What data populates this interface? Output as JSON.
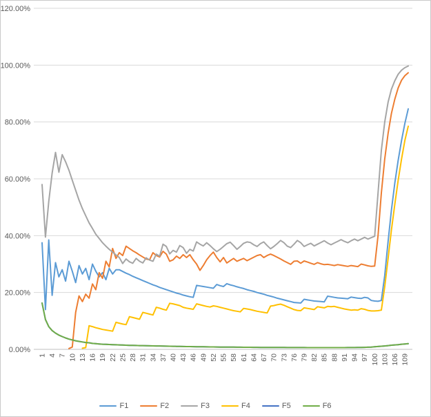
{
  "chart_data": {
    "type": "line",
    "title": "",
    "xlabel": "",
    "ylabel": "",
    "n_points": 110,
    "ylim": [
      0,
      120
    ],
    "grid": true,
    "legend_position": "bottom",
    "y_tick_labels": [
      "0.00%",
      "20.00%",
      "40.00%",
      "60.00%",
      "80.00%",
      "100.00%",
      "120.00%"
    ],
    "x_tick_labels": [
      "1",
      "4",
      "7",
      "10",
      "13",
      "16",
      "19",
      "22",
      "25",
      "28",
      "31",
      "34",
      "37",
      "40",
      "43",
      "46",
      "49",
      "52",
      "55",
      "58",
      "61",
      "64",
      "67",
      "70",
      "73",
      "76",
      "79",
      "82",
      "85",
      "88",
      "91",
      "94",
      "97",
      "100",
      "103",
      "106",
      "109"
    ],
    "x_tick_step": 3,
    "style": {
      "background": "#ffffff",
      "border_color": "#c9c9c9",
      "gridline_color": "#d9d9d9",
      "axis_line_color": "#bfbfbf",
      "tick_text_color": "#595959",
      "x_label_rotation": -90
    },
    "series": [
      {
        "name": "F1",
        "color": "#5B9BD5",
        "values": [
          37.5,
          14,
          38.5,
          19,
          30.5,
          25.5,
          28,
          24,
          31,
          27.5,
          23.5,
          29.5,
          26.5,
          28.5,
          24.5,
          30,
          27.5,
          25.5,
          27,
          24.5,
          28.5,
          26.5,
          28,
          28,
          27.4,
          26.8,
          26.3,
          25.7,
          25.2,
          24.7,
          24.2,
          23.7,
          23.2,
          22.7,
          22.3,
          21.8,
          21.4,
          21,
          20.6,
          20.2,
          19.8,
          19.5,
          19.1,
          18.8,
          18.5,
          18.3,
          22.5,
          22.3,
          22.1,
          21.9,
          21.7,
          21.5,
          22.8,
          22.4,
          22.1,
          23.1,
          22.7,
          22.4,
          22,
          21.7,
          21.4,
          21,
          20.7,
          20.4,
          20,
          19.7,
          19.4,
          19,
          18.7,
          18.4,
          18,
          17.7,
          17.4,
          17.1,
          16.8,
          16.5,
          16.4,
          16.3,
          17.6,
          17.4,
          17.2,
          17,
          16.9,
          16.8,
          16.7,
          18.7,
          18.5,
          18.3,
          18.1,
          18,
          17.9,
          17.8,
          18.4,
          18.2,
          18,
          17.9,
          18.3,
          18.1,
          17.2,
          17,
          16.9,
          17.2,
          26,
          38,
          49,
          58.5,
          66.5,
          73.5,
          79.5,
          84.6
        ]
      },
      {
        "name": "F2",
        "color": "#ED7D31",
        "values": [
          null,
          null,
          null,
          null,
          null,
          null,
          null,
          null,
          0.3,
          0.8,
          13,
          18.8,
          16.8,
          19.4,
          18,
          23,
          21,
          27,
          25,
          31,
          29,
          35.5,
          32,
          34,
          33,
          36.3,
          35.5,
          34.7,
          34,
          33.2,
          32.5,
          31.8,
          31.5,
          34,
          33,
          32.5,
          34.5,
          33.5,
          31,
          31.5,
          32.8,
          32,
          33.3,
          32.3,
          33.3,
          31.5,
          30,
          27.8,
          29.5,
          31.5,
          33,
          34.2,
          32.3,
          30.8,
          32.3,
          30.4,
          31.2,
          32,
          31,
          31.5,
          32,
          31.2,
          31.8,
          32.4,
          33,
          33.3,
          32.3,
          33,
          33.5,
          33,
          32.4,
          31.8,
          31.1,
          30.5,
          29.9,
          31,
          31.1,
          30.3,
          31.1,
          30.7,
          30.3,
          29.9,
          30.5,
          30.1,
          29.8,
          29.9,
          29.7,
          29.5,
          29.8,
          29.6,
          29.4,
          29.2,
          29.5,
          29.3,
          29.1,
          30,
          29.7,
          29.4,
          29.2,
          29.3,
          40,
          55,
          67,
          76,
          83,
          88,
          92,
          94.7,
          96.3,
          97.3
        ]
      },
      {
        "name": "F3",
        "color": "#A5A5A5",
        "values": [
          58,
          39.5,
          52,
          62,
          69.3,
          62.3,
          68.5,
          66,
          63,
          59.5,
          56,
          52.5,
          49.5,
          47,
          44.5,
          42.5,
          40.5,
          39,
          37.5,
          36.3,
          35.2,
          34.2,
          33.2,
          32.3,
          30.2,
          31.8,
          30.8,
          30.3,
          32,
          31,
          30.4,
          32.2,
          31.4,
          31,
          33.5,
          32.8,
          37,
          36.2,
          33.6,
          34.8,
          34.2,
          36.5,
          35.8,
          33.8,
          35.2,
          34.6,
          37.8,
          37,
          36.4,
          37.5,
          36.5,
          35.4,
          34.4,
          35.2,
          36.2,
          37.2,
          37.7,
          36.5,
          35.2,
          36.2,
          37.3,
          37.8,
          37.6,
          36.8,
          36.2,
          37.2,
          37.8,
          36.5,
          35.4,
          36.2,
          37.2,
          38.3,
          37.5,
          36.3,
          35.8,
          37,
          38.3,
          37.5,
          36.2,
          36.8,
          37.3,
          36.4,
          37,
          37.6,
          38.2,
          37.4,
          36.8,
          37.4,
          38,
          38.6,
          38,
          37.5,
          38.2,
          38.8,
          38.2,
          38.8,
          39.4,
          38.8,
          39.3,
          39.8,
          55,
          70,
          80,
          87,
          91.5,
          94.5,
          96.8,
          98.2,
          99.1,
          99.7
        ]
      },
      {
        "name": "F4",
        "color": "#FFC000",
        "values": [
          null,
          null,
          null,
          null,
          null,
          null,
          null,
          null,
          null,
          null,
          null,
          null,
          0.4,
          0.6,
          8.3,
          8,
          7.6,
          7.3,
          7,
          6.8,
          6.6,
          6.4,
          9.5,
          9.2,
          8.9,
          8.7,
          11.5,
          11.2,
          10.9,
          10.6,
          13,
          12.7,
          12.4,
          12.1,
          14.8,
          14.5,
          14.1,
          13.8,
          16.2,
          16,
          15.7,
          15.4,
          14.8,
          14.5,
          14.3,
          14.1,
          16,
          15.7,
          15.4,
          15.1,
          14.9,
          15.3,
          15.1,
          14.8,
          14.5,
          14.2,
          13.9,
          13.6,
          13.4,
          13.2,
          14.4,
          14.2,
          14,
          13.7,
          13.4,
          13.2,
          13,
          12.8,
          15.2,
          15.4,
          15.7,
          15.9,
          15.5,
          15,
          14.5,
          14,
          13.7,
          13.6,
          14.6,
          14.4,
          14.2,
          14,
          15,
          14.8,
          14.6,
          15.1,
          15,
          15.1,
          14.8,
          14.5,
          14.2,
          14,
          13.8,
          13.9,
          13.8,
          14.3,
          14.1,
          13.7,
          13.5,
          13.5,
          13.6,
          13.8,
          22,
          32,
          42,
          51,
          59.5,
          67,
          73.5,
          78.5
        ]
      },
      {
        "name": "F5",
        "color": "#4472C4",
        "values": [
          16.3,
          10.5,
          8,
          6.6,
          5.7,
          5,
          4.5,
          4,
          3.6,
          3.3,
          3,
          2.8,
          2.6,
          2.4,
          2.3,
          2.1,
          2,
          1.9,
          1.8,
          1.75,
          1.7,
          1.65,
          1.6,
          1.55,
          1.5,
          1.45,
          1.4,
          1.38,
          1.35,
          1.32,
          1.3,
          1.28,
          1.25,
          1.22,
          1.2,
          1.18,
          1.15,
          1.12,
          1.1,
          1.08,
          1.05,
          1.03,
          1,
          0.98,
          0.96,
          0.94,
          0.92,
          0.9,
          0.89,
          0.87,
          0.86,
          0.84,
          0.83,
          0.81,
          0.8,
          0.79,
          0.78,
          0.77,
          0.76,
          0.75,
          0.74,
          0.73,
          0.72,
          0.71,
          0.7,
          0.69,
          0.68,
          0.68,
          0.67,
          0.66,
          0.66,
          0.65,
          0.65,
          0.64,
          0.64,
          0.63,
          0.63,
          0.62,
          0.62,
          0.61,
          0.61,
          0.6,
          0.6,
          0.6,
          0.6,
          0.6,
          0.6,
          0.6,
          0.6,
          0.6,
          0.61,
          0.62,
          0.63,
          0.64,
          0.66,
          0.68,
          0.7,
          0.75,
          0.8,
          0.9,
          1,
          1.1,
          1.2,
          1.3,
          1.45,
          1.55,
          1.65,
          1.8,
          1.9,
          2
        ]
      },
      {
        "name": "F6",
        "color": "#70AD47",
        "values": [
          16.3,
          10.5,
          8,
          6.6,
          5.7,
          5,
          4.5,
          4,
          3.6,
          3.3,
          3,
          2.8,
          2.6,
          2.4,
          2.3,
          2.1,
          2,
          1.9,
          1.8,
          1.75,
          1.7,
          1.65,
          1.6,
          1.55,
          1.5,
          1.45,
          1.4,
          1.38,
          1.35,
          1.32,
          1.3,
          1.28,
          1.25,
          1.22,
          1.2,
          1.18,
          1.15,
          1.12,
          1.1,
          1.08,
          1.05,
          1.03,
          1,
          0.98,
          0.96,
          0.94,
          0.92,
          0.9,
          0.89,
          0.87,
          0.86,
          0.84,
          0.83,
          0.81,
          0.8,
          0.79,
          0.78,
          0.77,
          0.76,
          0.75,
          0.74,
          0.73,
          0.72,
          0.71,
          0.7,
          0.69,
          0.68,
          0.68,
          0.67,
          0.66,
          0.66,
          0.65,
          0.65,
          0.64,
          0.64,
          0.63,
          0.63,
          0.62,
          0.62,
          0.61,
          0.61,
          0.6,
          0.6,
          0.6,
          0.6,
          0.6,
          0.6,
          0.6,
          0.6,
          0.6,
          0.61,
          0.62,
          0.63,
          0.64,
          0.66,
          0.68,
          0.7,
          0.75,
          0.8,
          0.9,
          1,
          1.1,
          1.2,
          1.3,
          1.45,
          1.55,
          1.65,
          1.8,
          1.9,
          2
        ]
      }
    ],
    "note_final_values": {
      "F1": "84.6%",
      "F2": "97.3%",
      "F3": "99.7%",
      "F4": "78.5%",
      "F6": "2%"
    }
  }
}
